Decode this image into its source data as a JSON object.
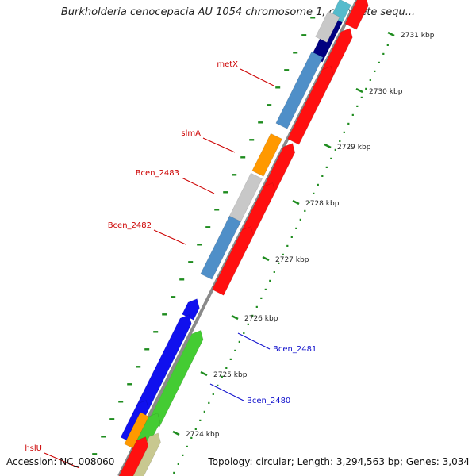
{
  "title": "Burkholderia cenocepacia AU 1054 chromosome 1, complete sequ...",
  "accession": "Accession: NC_008060",
  "summary": "Topology: circular; Length: 3,294,563 bp; Genes: 3,034",
  "colors": {
    "backbone": "#808080",
    "tick": "#1f8c1f",
    "label_red": "#cc0000",
    "label_blue": "#1010cc"
  },
  "ticks": [
    {
      "label": "2731 kbp"
    },
    {
      "label": "2730 kbp"
    },
    {
      "label": "2729 kbp"
    },
    {
      "label": "2728 kbp"
    },
    {
      "label": "2727 kbp"
    },
    {
      "label": "2726 kbp"
    },
    {
      "label": "2725 kbp"
    },
    {
      "label": "2724 kbp"
    }
  ],
  "gene_labels": [
    {
      "name": "metX",
      "color": "#cc0000"
    },
    {
      "name": "slmA",
      "color": "#cc0000"
    },
    {
      "name": "Bcen_2483",
      "color": "#cc0000"
    },
    {
      "name": "Bcen_2482",
      "color": "#cc0000"
    },
    {
      "name": "Bcen_2481",
      "color": "#1010cc"
    },
    {
      "name": "Bcen_2480",
      "color": "#1010cc"
    },
    {
      "name": "hslU",
      "color": "#cc0000"
    }
  ]
}
